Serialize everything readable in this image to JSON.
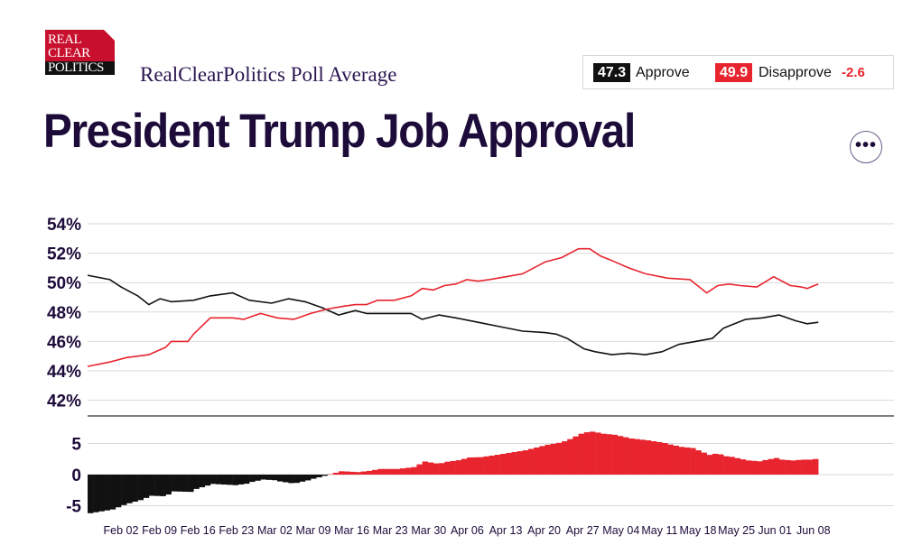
{
  "logo": {
    "line1": "REAL",
    "line2": "CLEAR",
    "line3": "POLITICS"
  },
  "header": {
    "subtitle": "RealClearPolitics Poll Average",
    "title": "President Trump Job Approval"
  },
  "summary": {
    "approve_value": "47.3",
    "approve_label": "Approve",
    "disapprove_value": "49.9",
    "disapprove_label": "Disapprove",
    "spread": "-2.6"
  },
  "more_button": {
    "label": "•••"
  },
  "colors": {
    "approve": "#111111",
    "disapprove": "#e8242e",
    "grid": "#d9d9d9",
    "text": "#1d0b3a"
  },
  "chart_data": {
    "type": "line",
    "title": "President Trump Job Approval",
    "ylim": [
      41,
      55
    ],
    "yticks": [
      "54%",
      "52%",
      "50%",
      "48%",
      "46%",
      "44%",
      "42%"
    ],
    "ytick_values": [
      54,
      52,
      50,
      48,
      46,
      44,
      42
    ],
    "x_labels": [
      "Feb 02",
      "Feb 09",
      "Feb 16",
      "Feb 23",
      "Mar 02",
      "Mar 09",
      "Mar 16",
      "Mar 23",
      "Mar 30",
      "Apr 06",
      "Apr 13",
      "Apr 20",
      "Apr 27",
      "May 04",
      "May 11",
      "May 18",
      "May 25",
      "Jun 01",
      "Jun 08"
    ],
    "day_range": [
      0,
      130
    ],
    "x_label_days": [
      10,
      17,
      24,
      31,
      38,
      45,
      52,
      59,
      66,
      73,
      80,
      87,
      94,
      101,
      108,
      115,
      122,
      129,
      136
    ],
    "series": [
      {
        "name": "Approve",
        "color": "#111111",
        "days": [
          0,
          4,
          6,
          9,
          11,
          13,
          15,
          19,
          22,
          26,
          29,
          33,
          36,
          39,
          42,
          45,
          48,
          50,
          53,
          56,
          58,
          60,
          63,
          66,
          70,
          74,
          78,
          82,
          84,
          86,
          89,
          91,
          94,
          97,
          100,
          103,
          106,
          109,
          112,
          114,
          116,
          118,
          121,
          124,
          127,
          129,
          131
        ],
        "values": [
          50.5,
          50.2,
          49.7,
          49.1,
          48.5,
          48.9,
          48.7,
          48.8,
          49.1,
          49.3,
          48.8,
          48.6,
          48.9,
          48.7,
          48.3,
          47.8,
          48.1,
          47.9,
          47.9,
          47.9,
          47.9,
          47.5,
          47.8,
          47.6,
          47.3,
          47.0,
          46.7,
          46.6,
          46.5,
          46.2,
          45.5,
          45.3,
          45.1,
          45.2,
          45.1,
          45.3,
          45.8,
          46.0,
          46.2,
          46.9,
          47.2,
          47.5,
          47.6,
          47.8,
          47.4,
          47.2,
          47.3
        ]
      },
      {
        "name": "Disapprove",
        "color": "#e8242e",
        "days": [
          0,
          4,
          7,
          11,
          14,
          15,
          18,
          19,
          22,
          24,
          26,
          28,
          31,
          34,
          37,
          40,
          43,
          46,
          48,
          50,
          52,
          55,
          58,
          60,
          62,
          64,
          66,
          68,
          70,
          72,
          75,
          78,
          82,
          85,
          88,
          90,
          92,
          94,
          97,
          100,
          104,
          108,
          111,
          113,
          115,
          117,
          120,
          123,
          124,
          126,
          128,
          129,
          131
        ],
        "values": [
          44.3,
          44.6,
          44.9,
          45.1,
          45.6,
          46.0,
          46.0,
          46.5,
          47.6,
          47.6,
          47.6,
          47.5,
          47.9,
          47.6,
          47.5,
          47.9,
          48.2,
          48.4,
          48.5,
          48.5,
          48.8,
          48.8,
          49.1,
          49.6,
          49.5,
          49.8,
          49.9,
          50.2,
          50.1,
          50.2,
          50.4,
          50.6,
          51.4,
          51.7,
          52.3,
          52.3,
          51.8,
          51.5,
          51.0,
          50.6,
          50.3,
          50.2,
          49.3,
          49.8,
          49.9,
          49.8,
          49.7,
          50.4,
          50.2,
          49.8,
          49.7,
          49.6,
          49.9
        ]
      }
    ],
    "spread_chart": {
      "type": "bar",
      "ylim": [
        -6,
        8
      ],
      "yticks": [
        "5",
        "0",
        "-5"
      ],
      "ytick_values": [
        5,
        0,
        -5
      ],
      "positive_color": "#e8242e",
      "negative_color": "#111111",
      "note": "spread = disapprove minus approve, per day"
    }
  }
}
